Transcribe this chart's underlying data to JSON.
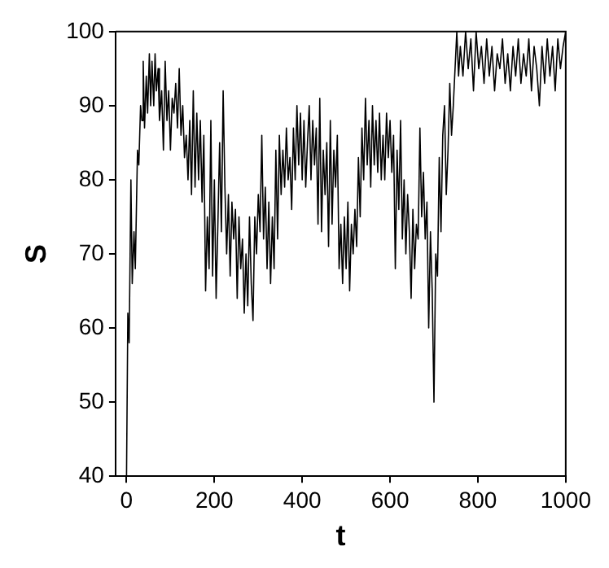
{
  "chart_data": {
    "type": "line",
    "xlabel": "t",
    "ylabel": "S",
    "xlim": [
      -25,
      1000
    ],
    "xticks": [
      0,
      200,
      400,
      600,
      800,
      1000
    ],
    "ylim": [
      40,
      100
    ],
    "yticks": [
      40,
      50,
      60,
      70,
      80,
      90,
      100
    ],
    "grid": false,
    "legend": false,
    "marker": "none",
    "line_style": "solid",
    "series": [
      {
        "color": "#000000",
        "x": [
          0,
          3,
          6,
          10,
          13,
          17,
          20,
          25,
          28,
          32,
          35,
          38,
          41,
          45,
          48,
          52,
          55,
          58,
          62,
          65,
          68,
          72,
          75,
          80,
          84,
          88,
          92,
          96,
          100,
          104,
          108,
          112,
          116,
          120,
          124,
          128,
          132,
          136,
          140,
          144,
          148,
          152,
          156,
          160,
          164,
          168,
          172,
          176,
          180,
          184,
          188,
          192,
          196,
          200,
          204,
          208,
          212,
          216,
          220,
          224,
          228,
          232,
          236,
          240,
          244,
          248,
          252,
          256,
          260,
          264,
          268,
          272,
          276,
          280,
          284,
          288,
          292,
          296,
          300,
          304,
          308,
          312,
          316,
          320,
          324,
          328,
          332,
          336,
          340,
          344,
          348,
          352,
          356,
          360,
          364,
          368,
          372,
          376,
          380,
          384,
          388,
          392,
          396,
          400,
          404,
          408,
          412,
          416,
          420,
          424,
          428,
          432,
          436,
          440,
          444,
          448,
          452,
          456,
          460,
          464,
          468,
          472,
          476,
          480,
          484,
          488,
          492,
          496,
          500,
          504,
          508,
          512,
          516,
          520,
          524,
          528,
          532,
          536,
          540,
          544,
          548,
          552,
          556,
          560,
          564,
          568,
          572,
          576,
          580,
          584,
          588,
          592,
          596,
          600,
          604,
          608,
          612,
          616,
          620,
          624,
          628,
          632,
          636,
          640,
          644,
          648,
          652,
          656,
          660,
          664,
          668,
          672,
          676,
          680,
          684,
          688,
          692,
          696,
          700,
          704,
          708,
          712,
          716,
          720,
          724,
          728,
          732,
          736,
          740,
          744,
          748,
          752,
          756,
          760,
          766,
          772,
          778,
          784,
          790,
          796,
          802,
          808,
          814,
          820,
          826,
          832,
          838,
          844,
          850,
          856,
          862,
          868,
          874,
          880,
          886,
          892,
          898,
          904,
          910,
          916,
          922,
          928,
          934,
          940,
          946,
          952,
          958,
          964,
          970,
          976,
          982,
          988,
          994,
          1000
        ],
        "values": [
          40,
          62,
          58,
          80,
          66,
          73,
          68,
          84,
          82,
          90,
          88,
          96,
          87,
          94,
          89,
          97,
          90,
          96,
          90,
          97,
          92,
          95,
          88,
          92,
          84,
          96,
          88,
          92,
          84,
          91,
          89,
          93,
          87,
          95,
          86,
          90,
          83,
          86,
          80,
          88,
          78,
          92,
          79,
          89,
          80,
          88,
          77,
          86,
          65,
          75,
          68,
          88,
          67,
          80,
          64,
          74,
          85,
          73,
          92,
          79,
          70,
          78,
          67,
          77,
          72,
          76,
          64,
          75,
          68,
          72,
          62,
          70,
          63,
          75,
          66,
          61,
          75,
          70,
          78,
          73,
          86,
          72,
          79,
          68,
          77,
          66,
          75,
          68,
          84,
          72,
          86,
          78,
          84,
          79,
          87,
          80,
          83,
          76,
          87,
          80,
          90,
          82,
          89,
          80,
          88,
          79,
          85,
          90,
          80,
          88,
          82,
          87,
          74,
          91,
          73,
          84,
          78,
          85,
          71,
          88,
          74,
          84,
          79,
          86,
          68,
          74,
          66,
          75,
          68,
          77,
          65,
          74,
          70,
          76,
          71,
          83,
          75,
          87,
          80,
          91,
          82,
          88,
          79,
          90,
          82,
          88,
          81,
          89,
          80,
          86,
          80,
          89,
          83,
          88,
          81,
          86,
          68,
          84,
          76,
          88,
          72,
          80,
          70,
          78,
          73,
          64,
          76,
          68,
          74,
          72,
          87,
          75,
          81,
          72,
          77,
          60,
          73,
          65,
          50,
          70,
          67,
          83,
          73,
          86,
          90,
          78,
          84,
          93,
          86,
          90,
          95,
          100,
          94,
          98,
          94,
          100,
          95,
          99,
          92,
          100,
          95,
          98,
          93,
          99,
          94,
          98,
          92,
          97,
          95,
          99,
          93,
          97,
          92,
          98,
          94,
          99,
          93,
          97,
          94,
          99,
          92,
          98,
          95,
          90,
          98,
          93,
          99,
          94,
          98,
          92,
          99,
          95,
          98,
          100
        ]
      }
    ]
  }
}
